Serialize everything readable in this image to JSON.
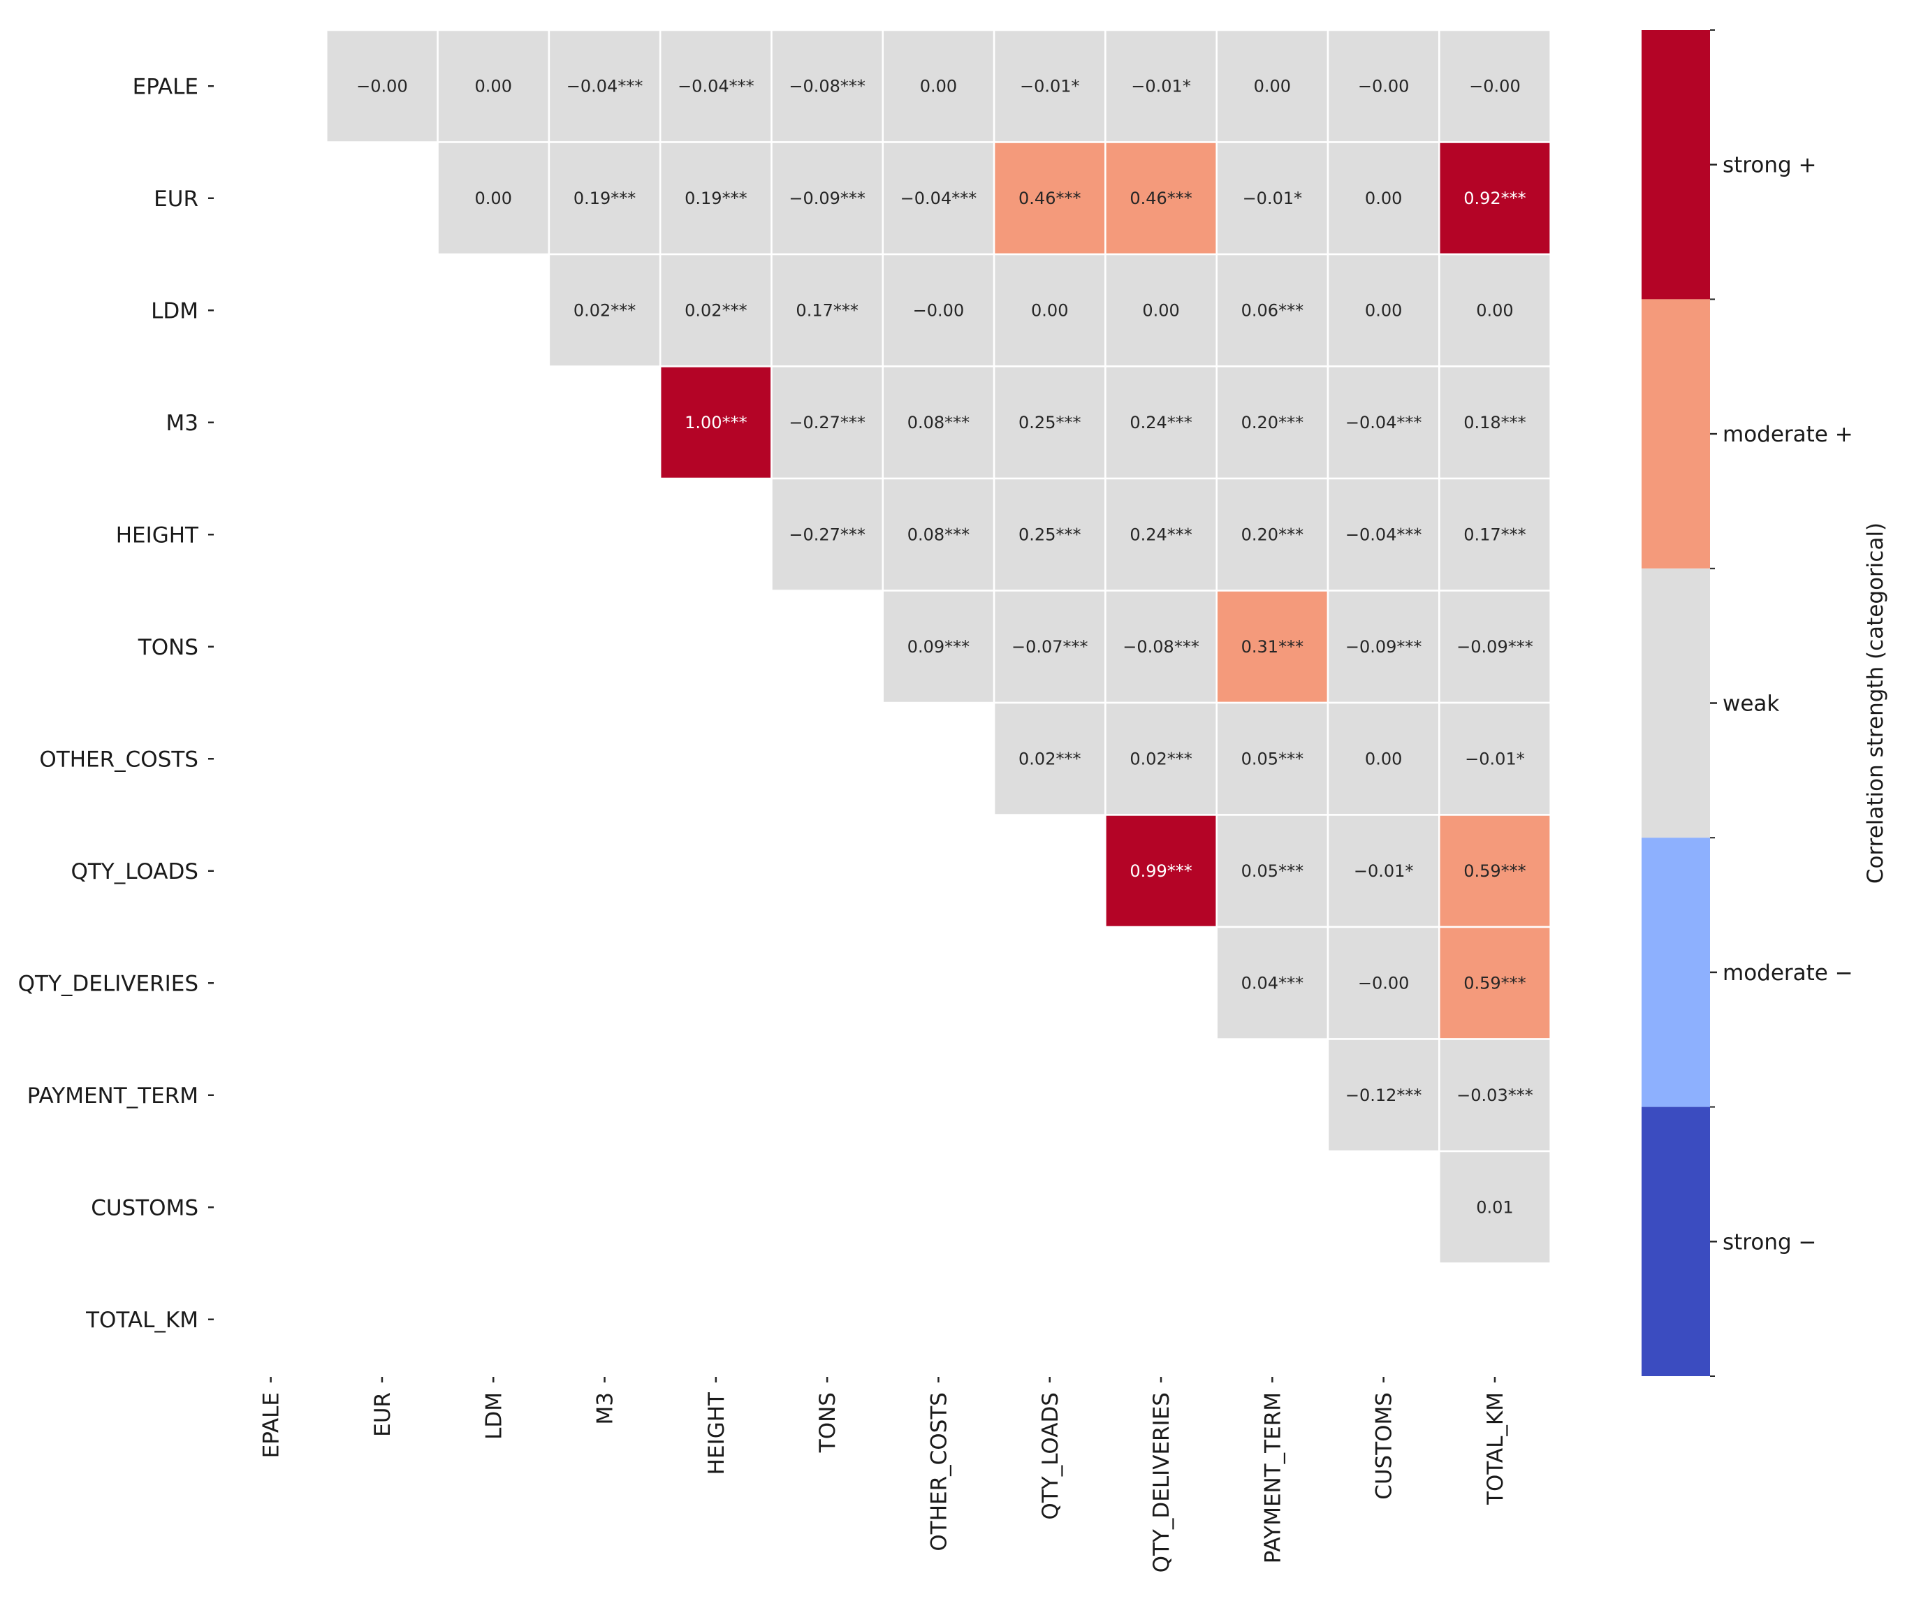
{
  "chart_data": {
    "type": "heatmap",
    "title": "",
    "variables": [
      "EPALE",
      "EUR",
      "LDM",
      "M3",
      "HEIGHT",
      "TONS",
      "OTHER_COSTS",
      "QTY_LOADS",
      "QTY_DELIVERIES",
      "PAYMENT_TERM",
      "CUSTOMS",
      "TOTAL_KM"
    ],
    "mask": "lower-triangle-and-diagonal",
    "cells": [
      {
        "row": "EPALE",
        "col": "EUR",
        "value": -0.0,
        "label": "−0.00",
        "category": "weak"
      },
      {
        "row": "EPALE",
        "col": "LDM",
        "value": 0.0,
        "label": "0.00",
        "category": "weak"
      },
      {
        "row": "EPALE",
        "col": "M3",
        "value": -0.04,
        "label": "−0.04***",
        "category": "weak"
      },
      {
        "row": "EPALE",
        "col": "HEIGHT",
        "value": -0.04,
        "label": "−0.04***",
        "category": "weak"
      },
      {
        "row": "EPALE",
        "col": "TONS",
        "value": -0.08,
        "label": "−0.08***",
        "category": "weak"
      },
      {
        "row": "EPALE",
        "col": "OTHER_COSTS",
        "value": 0.0,
        "label": "0.00",
        "category": "weak"
      },
      {
        "row": "EPALE",
        "col": "QTY_LOADS",
        "value": -0.01,
        "label": "−0.01*",
        "category": "weak"
      },
      {
        "row": "EPALE",
        "col": "QTY_DELIVERIES",
        "value": -0.01,
        "label": "−0.01*",
        "category": "weak"
      },
      {
        "row": "EPALE",
        "col": "PAYMENT_TERM",
        "value": 0.0,
        "label": "0.00",
        "category": "weak"
      },
      {
        "row": "EPALE",
        "col": "CUSTOMS",
        "value": -0.0,
        "label": "−0.00",
        "category": "weak"
      },
      {
        "row": "EPALE",
        "col": "TOTAL_KM",
        "value": -0.0,
        "label": "−0.00",
        "category": "weak"
      },
      {
        "row": "EUR",
        "col": "LDM",
        "value": 0.0,
        "label": "0.00",
        "category": "weak"
      },
      {
        "row": "EUR",
        "col": "M3",
        "value": 0.19,
        "label": "0.19***",
        "category": "weak"
      },
      {
        "row": "EUR",
        "col": "HEIGHT",
        "value": 0.19,
        "label": "0.19***",
        "category": "weak"
      },
      {
        "row": "EUR",
        "col": "TONS",
        "value": -0.09,
        "label": "−0.09***",
        "category": "weak"
      },
      {
        "row": "EUR",
        "col": "OTHER_COSTS",
        "value": -0.04,
        "label": "−0.04***",
        "category": "weak"
      },
      {
        "row": "EUR",
        "col": "QTY_LOADS",
        "value": 0.46,
        "label": "0.46***",
        "category": "moderate +"
      },
      {
        "row": "EUR",
        "col": "QTY_DELIVERIES",
        "value": 0.46,
        "label": "0.46***",
        "category": "moderate +"
      },
      {
        "row": "EUR",
        "col": "PAYMENT_TERM",
        "value": -0.01,
        "label": "−0.01*",
        "category": "weak"
      },
      {
        "row": "EUR",
        "col": "CUSTOMS",
        "value": 0.0,
        "label": "0.00",
        "category": "weak"
      },
      {
        "row": "EUR",
        "col": "TOTAL_KM",
        "value": 0.92,
        "label": "0.92***",
        "category": "strong +"
      },
      {
        "row": "LDM",
        "col": "M3",
        "value": 0.02,
        "label": "0.02***",
        "category": "weak"
      },
      {
        "row": "LDM",
        "col": "HEIGHT",
        "value": 0.02,
        "label": "0.02***",
        "category": "weak"
      },
      {
        "row": "LDM",
        "col": "TONS",
        "value": 0.17,
        "label": "0.17***",
        "category": "weak"
      },
      {
        "row": "LDM",
        "col": "OTHER_COSTS",
        "value": -0.0,
        "label": "−0.00",
        "category": "weak"
      },
      {
        "row": "LDM",
        "col": "QTY_LOADS",
        "value": 0.0,
        "label": "0.00",
        "category": "weak"
      },
      {
        "row": "LDM",
        "col": "QTY_DELIVERIES",
        "value": 0.0,
        "label": "0.00",
        "category": "weak"
      },
      {
        "row": "LDM",
        "col": "PAYMENT_TERM",
        "value": 0.06,
        "label": "0.06***",
        "category": "weak"
      },
      {
        "row": "LDM",
        "col": "CUSTOMS",
        "value": 0.0,
        "label": "0.00",
        "category": "weak"
      },
      {
        "row": "LDM",
        "col": "TOTAL_KM",
        "value": 0.0,
        "label": "0.00",
        "category": "weak"
      },
      {
        "row": "M3",
        "col": "HEIGHT",
        "value": 1.0,
        "label": "1.00***",
        "category": "strong +"
      },
      {
        "row": "M3",
        "col": "TONS",
        "value": -0.27,
        "label": "−0.27***",
        "category": "weak"
      },
      {
        "row": "M3",
        "col": "OTHER_COSTS",
        "value": 0.08,
        "label": "0.08***",
        "category": "weak"
      },
      {
        "row": "M3",
        "col": "QTY_LOADS",
        "value": 0.25,
        "label": "0.25***",
        "category": "weak"
      },
      {
        "row": "M3",
        "col": "QTY_DELIVERIES",
        "value": 0.24,
        "label": "0.24***",
        "category": "weak"
      },
      {
        "row": "M3",
        "col": "PAYMENT_TERM",
        "value": 0.2,
        "label": "0.20***",
        "category": "weak"
      },
      {
        "row": "M3",
        "col": "CUSTOMS",
        "value": -0.04,
        "label": "−0.04***",
        "category": "weak"
      },
      {
        "row": "M3",
        "col": "TOTAL_KM",
        "value": 0.18,
        "label": "0.18***",
        "category": "weak"
      },
      {
        "row": "HEIGHT",
        "col": "TONS",
        "value": -0.27,
        "label": "−0.27***",
        "category": "weak"
      },
      {
        "row": "HEIGHT",
        "col": "OTHER_COSTS",
        "value": 0.08,
        "label": "0.08***",
        "category": "weak"
      },
      {
        "row": "HEIGHT",
        "col": "QTY_LOADS",
        "value": 0.25,
        "label": "0.25***",
        "category": "weak"
      },
      {
        "row": "HEIGHT",
        "col": "QTY_DELIVERIES",
        "value": 0.24,
        "label": "0.24***",
        "category": "weak"
      },
      {
        "row": "HEIGHT",
        "col": "PAYMENT_TERM",
        "value": 0.2,
        "label": "0.20***",
        "category": "weak"
      },
      {
        "row": "HEIGHT",
        "col": "CUSTOMS",
        "value": -0.04,
        "label": "−0.04***",
        "category": "weak"
      },
      {
        "row": "HEIGHT",
        "col": "TOTAL_KM",
        "value": 0.17,
        "label": "0.17***",
        "category": "weak"
      },
      {
        "row": "TONS",
        "col": "OTHER_COSTS",
        "value": 0.09,
        "label": "0.09***",
        "category": "weak"
      },
      {
        "row": "TONS",
        "col": "QTY_LOADS",
        "value": -0.07,
        "label": "−0.07***",
        "category": "weak"
      },
      {
        "row": "TONS",
        "col": "QTY_DELIVERIES",
        "value": -0.08,
        "label": "−0.08***",
        "category": "weak"
      },
      {
        "row": "TONS",
        "col": "PAYMENT_TERM",
        "value": 0.31,
        "label": "0.31***",
        "category": "moderate +"
      },
      {
        "row": "TONS",
        "col": "CUSTOMS",
        "value": -0.09,
        "label": "−0.09***",
        "category": "weak"
      },
      {
        "row": "TONS",
        "col": "TOTAL_KM",
        "value": -0.09,
        "label": "−0.09***",
        "category": "weak"
      },
      {
        "row": "OTHER_COSTS",
        "col": "QTY_LOADS",
        "value": 0.02,
        "label": "0.02***",
        "category": "weak"
      },
      {
        "row": "OTHER_COSTS",
        "col": "QTY_DELIVERIES",
        "value": 0.02,
        "label": "0.02***",
        "category": "weak"
      },
      {
        "row": "OTHER_COSTS",
        "col": "PAYMENT_TERM",
        "value": 0.05,
        "label": "0.05***",
        "category": "weak"
      },
      {
        "row": "OTHER_COSTS",
        "col": "CUSTOMS",
        "value": 0.0,
        "label": "0.00",
        "category": "weak"
      },
      {
        "row": "OTHER_COSTS",
        "col": "TOTAL_KM",
        "value": -0.01,
        "label": "−0.01*",
        "category": "weak"
      },
      {
        "row": "QTY_LOADS",
        "col": "QTY_DELIVERIES",
        "value": 0.99,
        "label": "0.99***",
        "category": "strong +"
      },
      {
        "row": "QTY_LOADS",
        "col": "PAYMENT_TERM",
        "value": 0.05,
        "label": "0.05***",
        "category": "weak"
      },
      {
        "row": "QTY_LOADS",
        "col": "CUSTOMS",
        "value": -0.01,
        "label": "−0.01*",
        "category": "weak"
      },
      {
        "row": "QTY_LOADS",
        "col": "TOTAL_KM",
        "value": 0.59,
        "label": "0.59***",
        "category": "moderate +"
      },
      {
        "row": "QTY_DELIVERIES",
        "col": "PAYMENT_TERM",
        "value": 0.04,
        "label": "0.04***",
        "category": "weak"
      },
      {
        "row": "QTY_DELIVERIES",
        "col": "CUSTOMS",
        "value": -0.0,
        "label": "−0.00",
        "category": "weak"
      },
      {
        "row": "QTY_DELIVERIES",
        "col": "TOTAL_KM",
        "value": 0.59,
        "label": "0.59***",
        "category": "moderate +"
      },
      {
        "row": "PAYMENT_TERM",
        "col": "CUSTOMS",
        "value": -0.12,
        "label": "−0.12***",
        "category": "weak"
      },
      {
        "row": "PAYMENT_TERM",
        "col": "TOTAL_KM",
        "value": -0.03,
        "label": "−0.03***",
        "category": "weak"
      },
      {
        "row": "CUSTOMS",
        "col": "TOTAL_KM",
        "value": 0.01,
        "label": "0.01",
        "category": "weak"
      }
    ],
    "colorbar": {
      "label": "Correlation strength (categorical)",
      "categories": [
        {
          "name": "strong +",
          "color": "#b40426"
        },
        {
          "name": "moderate +",
          "color": "#f49a7b"
        },
        {
          "name": "weak",
          "color": "#dddddd"
        },
        {
          "name": "moderate −",
          "color": "#8db0fe"
        },
        {
          "name": "strong −",
          "color": "#3b4cc0"
        }
      ]
    },
    "grid": false,
    "legend_position": "right"
  }
}
